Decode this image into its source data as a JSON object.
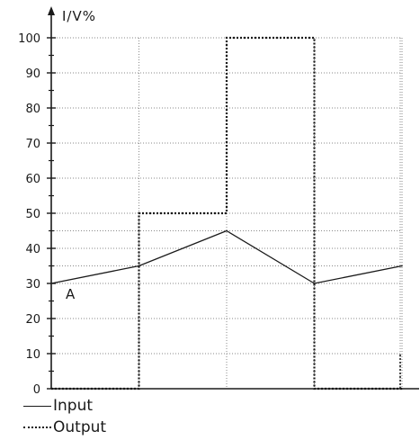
{
  "chart_data": {
    "type": "line",
    "ylabel": "I/V%",
    "ylim": [
      0,
      100
    ],
    "yticks": [
      0,
      10,
      20,
      30,
      40,
      50,
      60,
      70,
      80,
      90,
      100
    ],
    "x": [
      0,
      1,
      2,
      3,
      4
    ],
    "series": [
      {
        "name": "Input",
        "style": "solid",
        "values": [
          30,
          35,
          45,
          30,
          35
        ]
      },
      {
        "name": "Output",
        "style": "dotted",
        "step": true,
        "values": [
          0,
          50,
          100,
          0,
          0
        ]
      }
    ],
    "annotations": [
      {
        "text": "A",
        "x": 0,
        "y": 30
      }
    ],
    "grid": true,
    "colors": {
      "line": "#1a1a1a",
      "grid": "#8a8a8a"
    }
  },
  "legend": {
    "input_label": "Input",
    "output_label": "Output"
  }
}
